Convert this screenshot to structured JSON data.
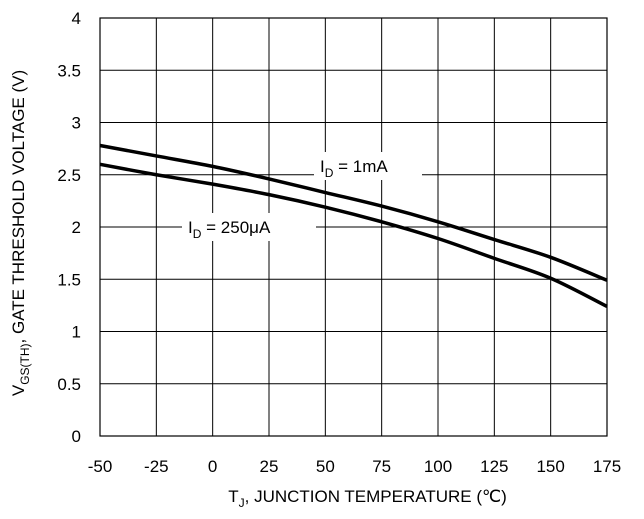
{
  "chart_data": {
    "type": "line",
    "title": "",
    "xlabel": {
      "main": "T",
      "sub": "J",
      "rest": ", JUNCTION TEMPERATURE (℃)"
    },
    "ylabel": {
      "main": "V",
      "sub": "GS(TH)",
      "rest": ", GATE THRESHOLD VOLTAGE (V)"
    },
    "xlim": [
      -50,
      175
    ],
    "ylim": [
      0,
      4
    ],
    "x_ticks": [
      -50,
      -25,
      0,
      25,
      50,
      75,
      100,
      125,
      150,
      175
    ],
    "x_tick_labels": [
      "-50",
      "-25",
      "0",
      "25",
      "50",
      "75",
      "100",
      "125",
      "150",
      "175"
    ],
    "y_ticks": [
      0,
      0.5,
      1,
      1.5,
      2,
      2.5,
      3,
      3.5,
      4
    ],
    "y_tick_labels": [
      "0",
      "0.5",
      "1",
      "1.5",
      "2",
      "2.5",
      "3",
      "3.5",
      "4"
    ],
    "grid": true,
    "series": [
      {
        "name_main": "I",
        "name_sub": "D",
        "name_rest": " = 1mA",
        "color": "#000000",
        "x": [
          -50,
          -25,
          0,
          25,
          50,
          75,
          100,
          125,
          150,
          175
        ],
        "y": [
          2.78,
          2.68,
          2.58,
          2.46,
          2.33,
          2.2,
          2.05,
          1.88,
          1.71,
          1.49
        ]
      },
      {
        "name_main": "I",
        "name_sub": "D",
        "name_rest": " = 250μA",
        "color": "#000000",
        "x": [
          -50,
          -25,
          0,
          25,
          50,
          75,
          100,
          125,
          150,
          175
        ],
        "y": [
          2.6,
          2.5,
          2.41,
          2.31,
          2.19,
          2.05,
          1.89,
          1.7,
          1.51,
          1.24
        ]
      }
    ]
  }
}
